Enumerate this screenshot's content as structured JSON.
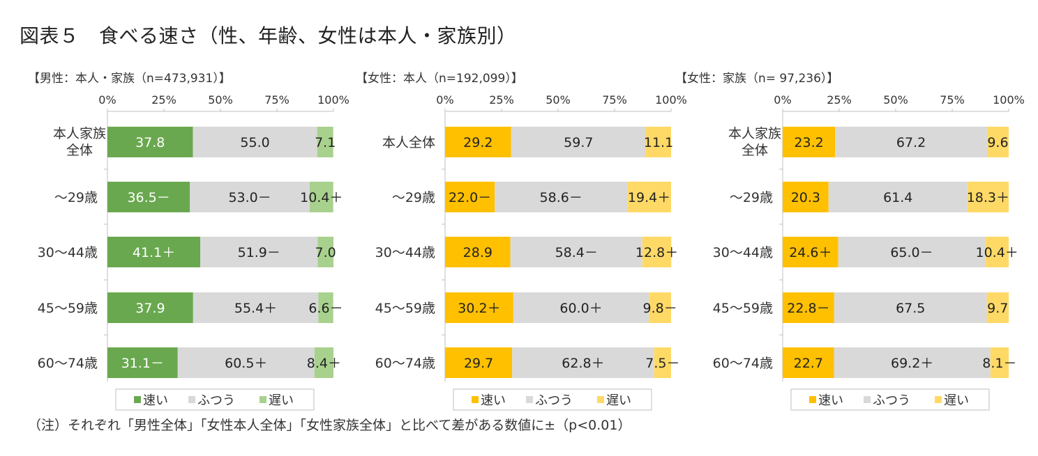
{
  "title": "図表５　食べる速さ（性、年齢、女性は本人・家族別）",
  "footnote": "（注）それぞれ「男性全体」「女性本人全体」「女性家族全体」と比べて差がある数値に±（p<0.01）",
  "legend_labels": [
    "速い",
    "ふつう",
    "遅い"
  ],
  "axis_ticks": [
    "0%",
    "25%",
    "50%",
    "75%",
    "100%"
  ],
  "chart_data": [
    {
      "type": "bar",
      "orientation": "horizontal",
      "stacked": true,
      "title": "【男性：本人・家族（n=473,931）】",
      "xlim": [
        0,
        100
      ],
      "categories": [
        "本人家族\n全体",
        "～29歳",
        "30～44歳",
        "45～59歳",
        "60～74歳"
      ],
      "colors": {
        "fast": "#6aa84f",
        "normal": "#d9d9d9",
        "slow": "#a9d18e"
      },
      "series": [
        {
          "name": "速い",
          "values": [
            37.8,
            36.5,
            41.1,
            37.9,
            31.1
          ],
          "labels": [
            "37.8",
            "36.5－",
            "41.1＋",
            "37.9",
            "31.1－"
          ]
        },
        {
          "name": "ふつう",
          "values": [
            55.0,
            53.0,
            51.9,
            55.4,
            60.5
          ],
          "labels": [
            "55.0",
            "53.0－",
            "51.9－",
            "55.4＋",
            "60.5＋"
          ]
        },
        {
          "name": "遅い",
          "values": [
            7.1,
            10.4,
            7.0,
            6.6,
            8.4
          ],
          "labels": [
            "7.1",
            "10.4＋",
            "7.0",
            "6.6－",
            "8.4＋"
          ]
        }
      ]
    },
    {
      "type": "bar",
      "orientation": "horizontal",
      "stacked": true,
      "title": "【女性：本人（n=192,099）】",
      "xlim": [
        0,
        100
      ],
      "categories": [
        "本人全体",
        "～29歳",
        "30～44歳",
        "45～59歳",
        "60～74歳"
      ],
      "colors": {
        "fast": "#ffc000",
        "normal": "#d9d9d9",
        "slow": "#ffd966"
      },
      "series": [
        {
          "name": "速い",
          "values": [
            29.2,
            22.0,
            28.9,
            30.2,
            29.7
          ],
          "labels": [
            "29.2",
            "22.0－",
            "28.9",
            "30.2＋",
            "29.7"
          ]
        },
        {
          "name": "ふつう",
          "values": [
            59.7,
            58.6,
            58.4,
            60.0,
            62.8
          ],
          "labels": [
            "59.7",
            "58.6－",
            "58.4－",
            "60.0＋",
            "62.8＋"
          ]
        },
        {
          "name": "遅い",
          "values": [
            11.1,
            19.4,
            12.8,
            9.8,
            7.5
          ],
          "labels": [
            "11.1",
            "19.4＋",
            "12.8＋",
            "9.8－",
            "7.5－"
          ]
        }
      ]
    },
    {
      "type": "bar",
      "orientation": "horizontal",
      "stacked": true,
      "title": "【女性：家族（n= 97,236）】",
      "xlim": [
        0,
        100
      ],
      "categories": [
        "本人家族\n全体",
        "～29歳",
        "30～44歳",
        "45～59歳",
        "60～74歳"
      ],
      "colors": {
        "fast": "#ffc000",
        "normal": "#d9d9d9",
        "slow": "#ffd966"
      },
      "series": [
        {
          "name": "速い",
          "values": [
            23.2,
            20.3,
            24.6,
            22.8,
            22.7
          ],
          "labels": [
            "23.2",
            "20.3",
            "24.6＋",
            "22.8－",
            "22.7"
          ]
        },
        {
          "name": "ふつう",
          "values": [
            67.2,
            61.4,
            65.0,
            67.5,
            69.2
          ],
          "labels": [
            "67.2",
            "61.4",
            "65.0－",
            "67.5",
            "69.2＋"
          ]
        },
        {
          "name": "遅い",
          "values": [
            9.6,
            18.3,
            10.4,
            9.7,
            8.1
          ],
          "labels": [
            "9.6",
            "18.3＋",
            "10.4＋",
            "9.7",
            "8.1－"
          ]
        }
      ]
    }
  ]
}
